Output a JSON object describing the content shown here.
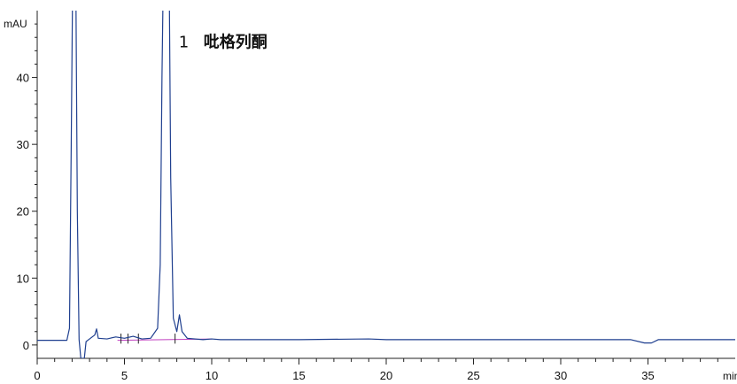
{
  "chart_data": {
    "type": "line",
    "title": "",
    "y_unit": "mAU",
    "x_unit": "min",
    "xlim": [
      0,
      40
    ],
    "ylim": [
      -2,
      50
    ],
    "x_ticks": [
      0,
      5,
      10,
      15,
      20,
      25,
      30,
      35
    ],
    "y_ticks": [
      0,
      10,
      20,
      30,
      40
    ],
    "grid": false,
    "series": [
      {
        "color": "#1f3f8f",
        "points": [
          [
            0.0,
            0.7
          ],
          [
            1.7,
            0.7
          ],
          [
            1.85,
            2.5
          ],
          [
            1.95,
            30
          ],
          [
            2.05,
            60
          ],
          [
            2.2,
            60
          ],
          [
            2.3,
            20
          ],
          [
            2.4,
            0.8
          ],
          [
            2.5,
            -2
          ],
          [
            2.7,
            -2
          ],
          [
            2.8,
            0.5
          ],
          [
            3.0,
            0.9
          ],
          [
            3.3,
            1.5
          ],
          [
            3.4,
            2.4
          ],
          [
            3.5,
            1.0
          ],
          [
            4.0,
            0.9
          ],
          [
            4.5,
            1.2
          ],
          [
            5.0,
            1.0
          ],
          [
            5.5,
            1.3
          ],
          [
            6.0,
            0.9
          ],
          [
            6.5,
            1.0
          ],
          [
            6.9,
            2.5
          ],
          [
            7.05,
            12
          ],
          [
            7.15,
            40
          ],
          [
            7.25,
            60
          ],
          [
            7.55,
            60
          ],
          [
            7.65,
            25
          ],
          [
            7.8,
            4
          ],
          [
            8.0,
            2.0
          ],
          [
            8.15,
            4.5
          ],
          [
            8.3,
            2.0
          ],
          [
            8.6,
            1.0
          ],
          [
            9.5,
            0.8
          ],
          [
            10.0,
            0.9
          ],
          [
            10.5,
            0.8
          ],
          [
            15.0,
            0.8
          ],
          [
            19.0,
            0.9
          ],
          [
            20.0,
            0.8
          ],
          [
            25.0,
            0.8
          ],
          [
            30.0,
            0.8
          ],
          [
            34.0,
            0.8
          ],
          [
            34.8,
            0.3
          ],
          [
            35.2,
            0.3
          ],
          [
            35.6,
            0.8
          ],
          [
            40.0,
            0.8
          ]
        ]
      }
    ],
    "baseline": {
      "color": "#c040c0",
      "x": [
        4.6,
        10.0
      ],
      "y": [
        0.7,
        0.9
      ]
    },
    "annotations": [
      {
        "label": "1",
        "name": "吡格列酮",
        "x": 7.4
      }
    ]
  }
}
